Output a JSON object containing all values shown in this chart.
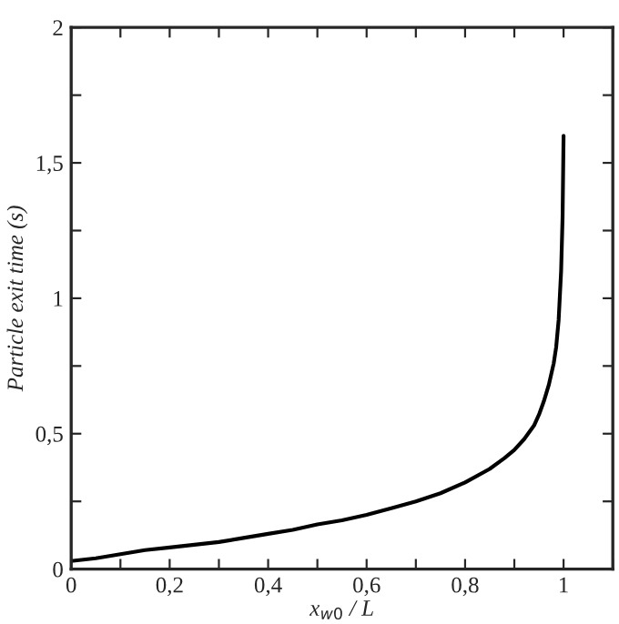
{
  "chart_data": {
    "type": "line",
    "xlabel": "x$_{w0}$ / L",
    "ylabel": "Particle exit time (s)",
    "x": [
      0,
      0.05,
      0.1,
      0.15,
      0.2,
      0.25,
      0.3,
      0.35,
      0.4,
      0.45,
      0.5,
      0.55,
      0.6,
      0.65,
      0.7,
      0.75,
      0.8,
      0.85,
      0.88,
      0.9,
      0.92,
      0.94,
      0.95,
      0.96,
      0.97,
      0.98,
      0.985,
      0.99,
      0.995,
      0.998,
      1.0
    ],
    "series": [
      {
        "color": "#000000",
        "values": [
          0.03,
          0.04,
          0.055,
          0.07,
          0.08,
          0.09,
          0.1,
          0.115,
          0.13,
          0.145,
          0.165,
          0.18,
          0.2,
          0.225,
          0.25,
          0.28,
          0.32,
          0.37,
          0.41,
          0.44,
          0.48,
          0.53,
          0.57,
          0.62,
          0.68,
          0.76,
          0.82,
          0.92,
          1.1,
          1.3,
          1.6
        ]
      }
    ],
    "xlim": [
      0,
      1.1
    ],
    "ylim": [
      0,
      2
    ],
    "xticks": [
      0,
      {
        "value": 0.1,
        "label": null
      },
      {
        "value": 0.2,
        "label": "0,2"
      },
      {
        "value": 0.3,
        "label": null
      },
      {
        "value": 0.4,
        "label": "0,4"
      },
      {
        "value": 0.5,
        "label": null
      },
      {
        "value": 0.6,
        "label": "0,6"
      },
      {
        "value": 0.7,
        "label": null
      },
      {
        "value": 0.8,
        "label": "0,8"
      },
      {
        "value": 0.9,
        "label": null
      },
      1,
      {
        "value": 1.1,
        "label": null
      }
    ],
    "yticks": [
      0,
      {
        "value": 0.25,
        "label": null
      },
      {
        "value": 0.5,
        "label": "0,5"
      },
      {
        "value": 0.75,
        "label": null
      },
      1,
      {
        "value": 1.25,
        "label": null
      },
      {
        "value": 1.5,
        "label": "1,5"
      },
      {
        "value": 1.75,
        "label": null
      },
      2
    ],
    "grid": false,
    "legend": false,
    "marker": "none",
    "line_style": "solid"
  }
}
